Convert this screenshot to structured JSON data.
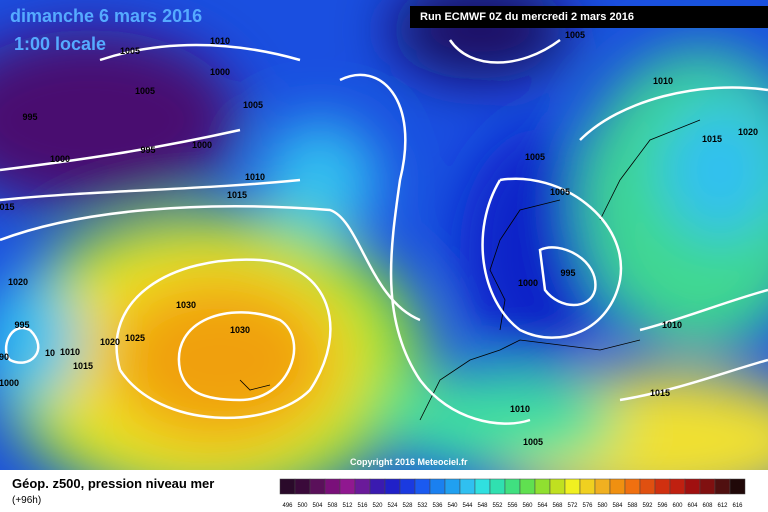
{
  "header": {
    "date": "dimanche 6 mars 2016",
    "time": "1:00 locale",
    "run": "Run ECMWF 0Z du mercredi 2 mars 2016"
  },
  "map": {
    "copyright": "Copyright 2016 Meteociel.fr",
    "isobar_labels": [
      "1010",
      "1005",
      "1000",
      "1005",
      "1005",
      "995",
      "995",
      "1000",
      "1000",
      "1010",
      "1015",
      "015",
      "1005",
      "1010",
      "1020",
      "1015",
      "1005",
      "1005",
      "995",
      "1000",
      "1020",
      "995",
      "1030",
      "1030",
      "1025",
      "1020",
      "1010",
      "10",
      "90",
      "1015",
      "1000",
      "1010",
      "1015",
      "1010",
      "1005"
    ]
  },
  "legend": {
    "title": "Géop. z500, pression niveau mer",
    "lead": "(+96h)",
    "scale": [
      496,
      500,
      504,
      508,
      512,
      516,
      520,
      524,
      528,
      532,
      536,
      540,
      544,
      548,
      552,
      556,
      560,
      564,
      568,
      572,
      576,
      580,
      584,
      588,
      592,
      596,
      600,
      604,
      608,
      612,
      616
    ]
  }
}
